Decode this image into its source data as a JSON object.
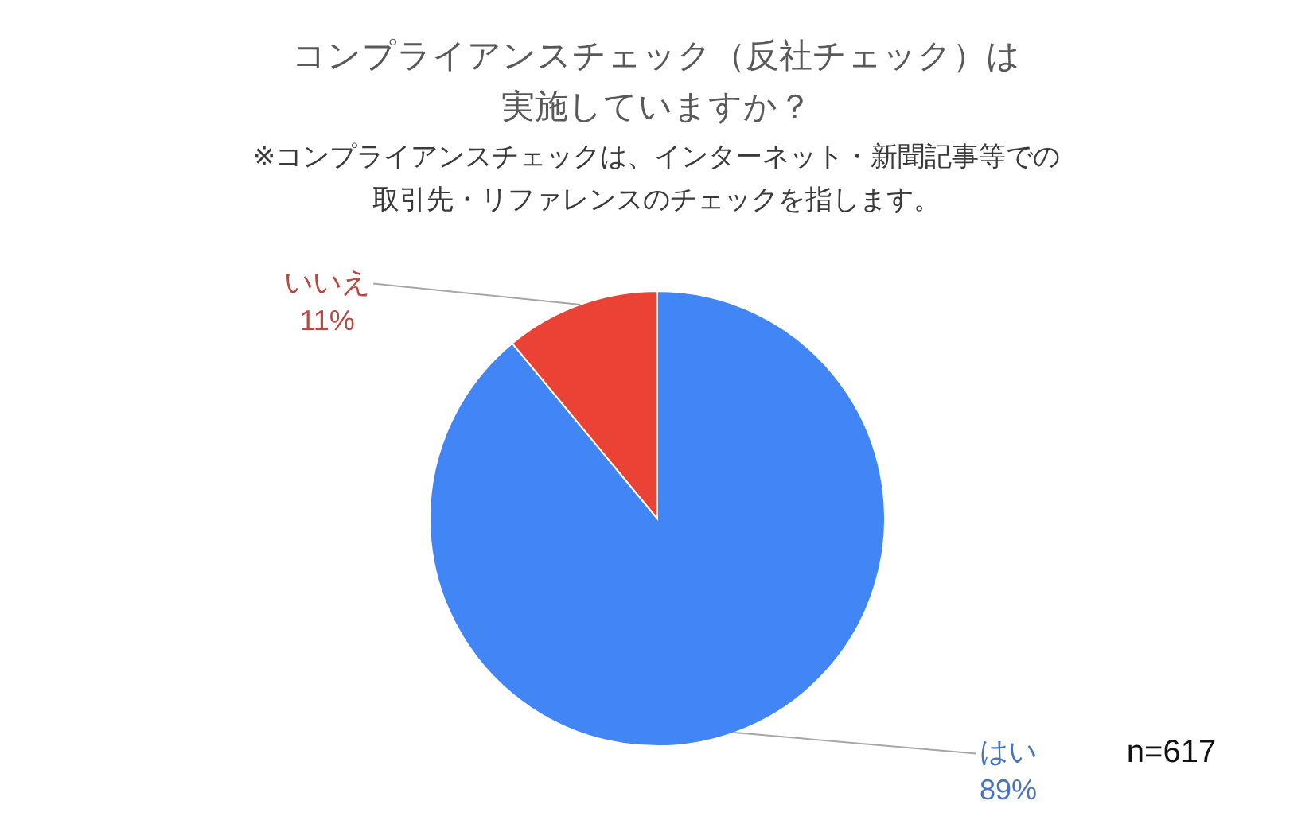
{
  "chart_data": {
    "type": "pie",
    "title": "コンプライアンスチェック（反社チェック）は実施していますか？",
    "subtitle": "※コンプライアンスチェックは、インターネット・新聞記事等での取引先・リファレンスのチェックを指します。",
    "categories": [
      "はい",
      "いいえ"
    ],
    "values": [
      89,
      11
    ],
    "colors": [
      "#4285f4",
      "#ea4335"
    ],
    "value_labels": [
      "89%",
      "11%"
    ],
    "annotations": [
      "n=617"
    ]
  }
}
